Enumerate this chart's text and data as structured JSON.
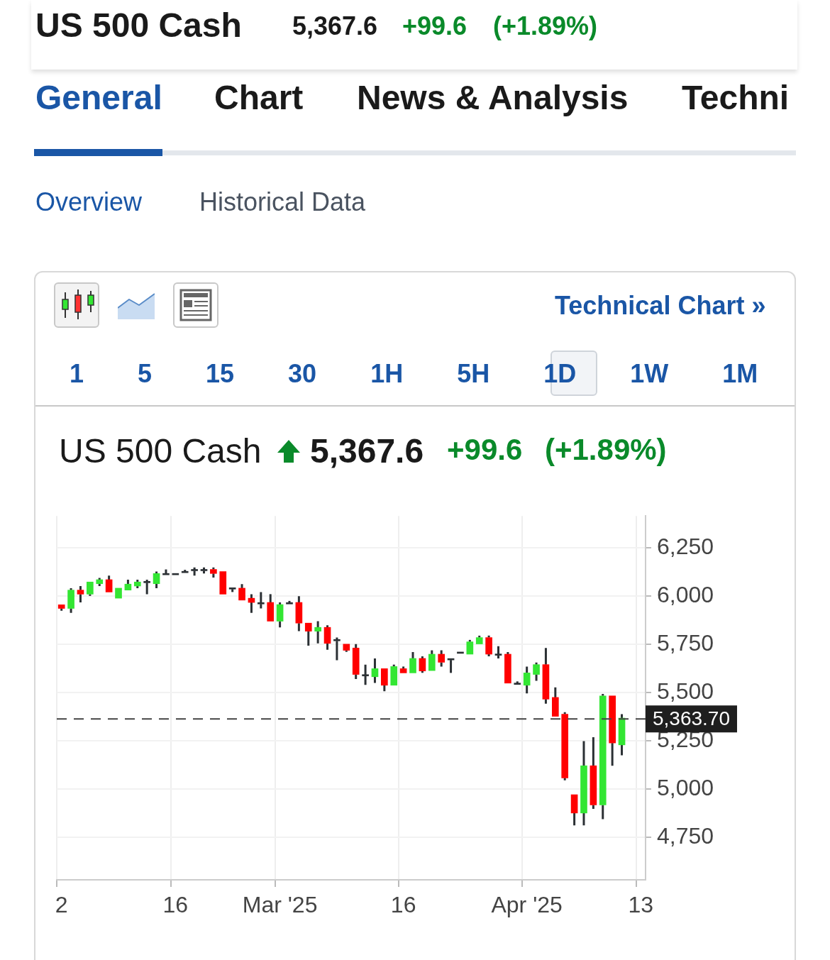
{
  "chart_data": {
    "type": "candlestick",
    "title": "US 500 Cash",
    "annotations": [
      "5,367.6",
      "+99.6",
      "(+1.89%)",
      "General",
      "Chart",
      "News & Analysis",
      "Techni",
      "Overview",
      "Historical Data",
      "Technical Chart »",
      "1 5 15 30 1H 5H 1D 1W 1M"
    ],
    "categories": [
      "2",
      null,
      null,
      null,
      null,
      null,
      null,
      null,
      null,
      null,
      null,
      null,
      "16",
      null,
      null,
      null,
      null,
      null,
      null,
      null,
      null,
      null,
      null,
      "Mar '25",
      null,
      null,
      null,
      null,
      null,
      null,
      null,
      null,
      null,
      null,
      null,
      null,
      "16",
      null,
      null,
      null,
      null,
      null,
      null,
      null,
      null,
      null,
      null,
      null,
      null,
      "Apr '25",
      null,
      null,
      null,
      null,
      null,
      null,
      null,
      null,
      null,
      null,
      null,
      "13"
    ],
    "ohlc": [
      [
        5955,
        5955,
        5924,
        5936
      ],
      [
        5936,
        6041,
        5913,
        6031
      ],
      [
        6031,
        6052,
        5967,
        6010
      ],
      [
        6010,
        6073,
        6001,
        6073
      ],
      [
        6064,
        6094,
        6052,
        6085
      ],
      [
        6085,
        6106,
        6021,
        6021
      ],
      [
        5989,
        6041,
        5989,
        6041
      ],
      [
        6031,
        6085,
        6031,
        6062
      ],
      [
        6052,
        6085,
        6041,
        6073
      ],
      [
        6069,
        6085,
        6010,
        6073
      ],
      [
        6064,
        6127,
        6041,
        6117
      ],
      [
        6110,
        6138,
        6110,
        6114
      ],
      [
        6110,
        6114,
        6110,
        6114
      ],
      [
        6121,
        6136,
        6121,
        6125
      ],
      [
        6131,
        6148,
        6106,
        6135
      ],
      [
        6131,
        6148,
        6117,
        6135
      ],
      [
        6138,
        6148,
        6096,
        6117
      ],
      [
        6127,
        6127,
        6010,
        6010
      ],
      [
        6036,
        6040,
        6021,
        6040
      ],
      [
        6041,
        6062,
        5979,
        5979
      ],
      [
        5989,
        6010,
        5913,
        5967
      ],
      [
        5959,
        6021,
        5936,
        5963
      ],
      [
        5967,
        6010,
        5870,
        5870
      ],
      [
        5870,
        5967,
        5838,
        5956
      ],
      [
        5959,
        5975,
        5959,
        5963
      ],
      [
        5967,
        5999,
        5818,
        5860
      ],
      [
        5860,
        5860,
        5743,
        5818
      ],
      [
        5818,
        5870,
        5755,
        5838
      ],
      [
        5838,
        5849,
        5722,
        5755
      ],
      [
        5768,
        5785,
        5668,
        5772
      ],
      [
        5751,
        5751,
        5711,
        5719
      ],
      [
        5731,
        5751,
        5570,
        5594
      ],
      [
        5586,
        5645,
        5540,
        5590
      ],
      [
        5582,
        5677,
        5550,
        5624
      ],
      [
        5624,
        5624,
        5507,
        5538
      ],
      [
        5538,
        5645,
        5538,
        5635
      ],
      [
        5624,
        5635,
        5602,
        5602
      ],
      [
        5602,
        5710,
        5602,
        5677
      ],
      [
        5677,
        5688,
        5602,
        5612
      ],
      [
        5614,
        5719,
        5614,
        5699
      ],
      [
        5699,
        5719,
        5635,
        5657
      ],
      [
        5669,
        5673,
        5602,
        5673
      ],
      [
        5703,
        5707,
        5703,
        5707
      ],
      [
        5699,
        5773,
        5699,
        5763
      ],
      [
        5752,
        5795,
        5752,
        5785
      ],
      [
        5785,
        5795,
        5688,
        5699
      ],
      [
        5693,
        5740,
        5677,
        5697
      ],
      [
        5699,
        5710,
        5549,
        5549
      ],
      [
        5542,
        5558,
        5542,
        5546
      ],
      [
        5538,
        5635,
        5496,
        5602
      ],
      [
        5594,
        5656,
        5561,
        5645
      ],
      [
        5645,
        5731,
        5443,
        5466
      ],
      [
        5475,
        5527,
        5377,
        5377
      ],
      [
        5388,
        5398,
        5046,
        5058
      ],
      [
        4971,
        4971,
        4812,
        4876
      ],
      [
        4876,
        5249,
        4812,
        5121
      ],
      [
        5121,
        5269,
        4898,
        4918
      ],
      [
        4918,
        5493,
        4844,
        5483
      ],
      [
        5483,
        5483,
        5121,
        5239
      ],
      [
        5229,
        5388,
        5175,
        5368
      ],
      null,
      null
    ],
    "colors": [
      "#ff0000",
      "#33e633",
      "#ff0000",
      "#33e633",
      "#33e633",
      "#ff0000",
      "#33e633",
      "#33e633",
      "#33e633",
      "#2b3034",
      "#33e633",
      "#2b3034",
      "#2b3034",
      "#2b3034",
      "#2b3034",
      "#2b3034",
      "#ff0000",
      "#ff0000",
      "#2b3034",
      "#ff0000",
      "#ff0000",
      "#2b3034",
      "#ff0000",
      "#33e633",
      "#2b3034",
      "#ff0000",
      "#ff0000",
      "#33e633",
      "#ff0000",
      "#2b3034",
      "#ff0000",
      "#ff0000",
      "#2b3034",
      "#33e633",
      "#ff0000",
      "#33e633",
      "#ff0000",
      "#33e633",
      "#ff0000",
      "#33e633",
      "#ff0000",
      "#2b3034",
      "#2b3034",
      "#33e633",
      "#33e633",
      "#ff0000",
      "#2b3034",
      "#ff0000",
      "#2b3034",
      "#33e633",
      "#33e633",
      "#ff0000",
      "#ff0000",
      "#ff0000",
      "#ff0000",
      "#33e633",
      "#ff0000",
      "#33e633",
      "#ff0000",
      "#33e633",
      null,
      null
    ],
    "ylim": [
      4530,
      6415
    ],
    "yticks": [
      {
        "value": 4750,
        "label": "4,750"
      },
      {
        "value": 5000,
        "label": "5,000"
      },
      {
        "value": 5250,
        "label": "5,250"
      },
      {
        "value": 5500,
        "label": "5,500"
      },
      {
        "value": 5750,
        "label": "5,750"
      },
      {
        "value": 6000,
        "label": "6,000"
      },
      {
        "value": 6250,
        "label": "6,250"
      }
    ],
    "ref_lines": [
      {
        "axis": "y",
        "value": 5363.7,
        "label": "5,363.70",
        "color": "#444444",
        "line_style": "dashed"
      }
    ],
    "grid": true,
    "legend": false
  }
}
